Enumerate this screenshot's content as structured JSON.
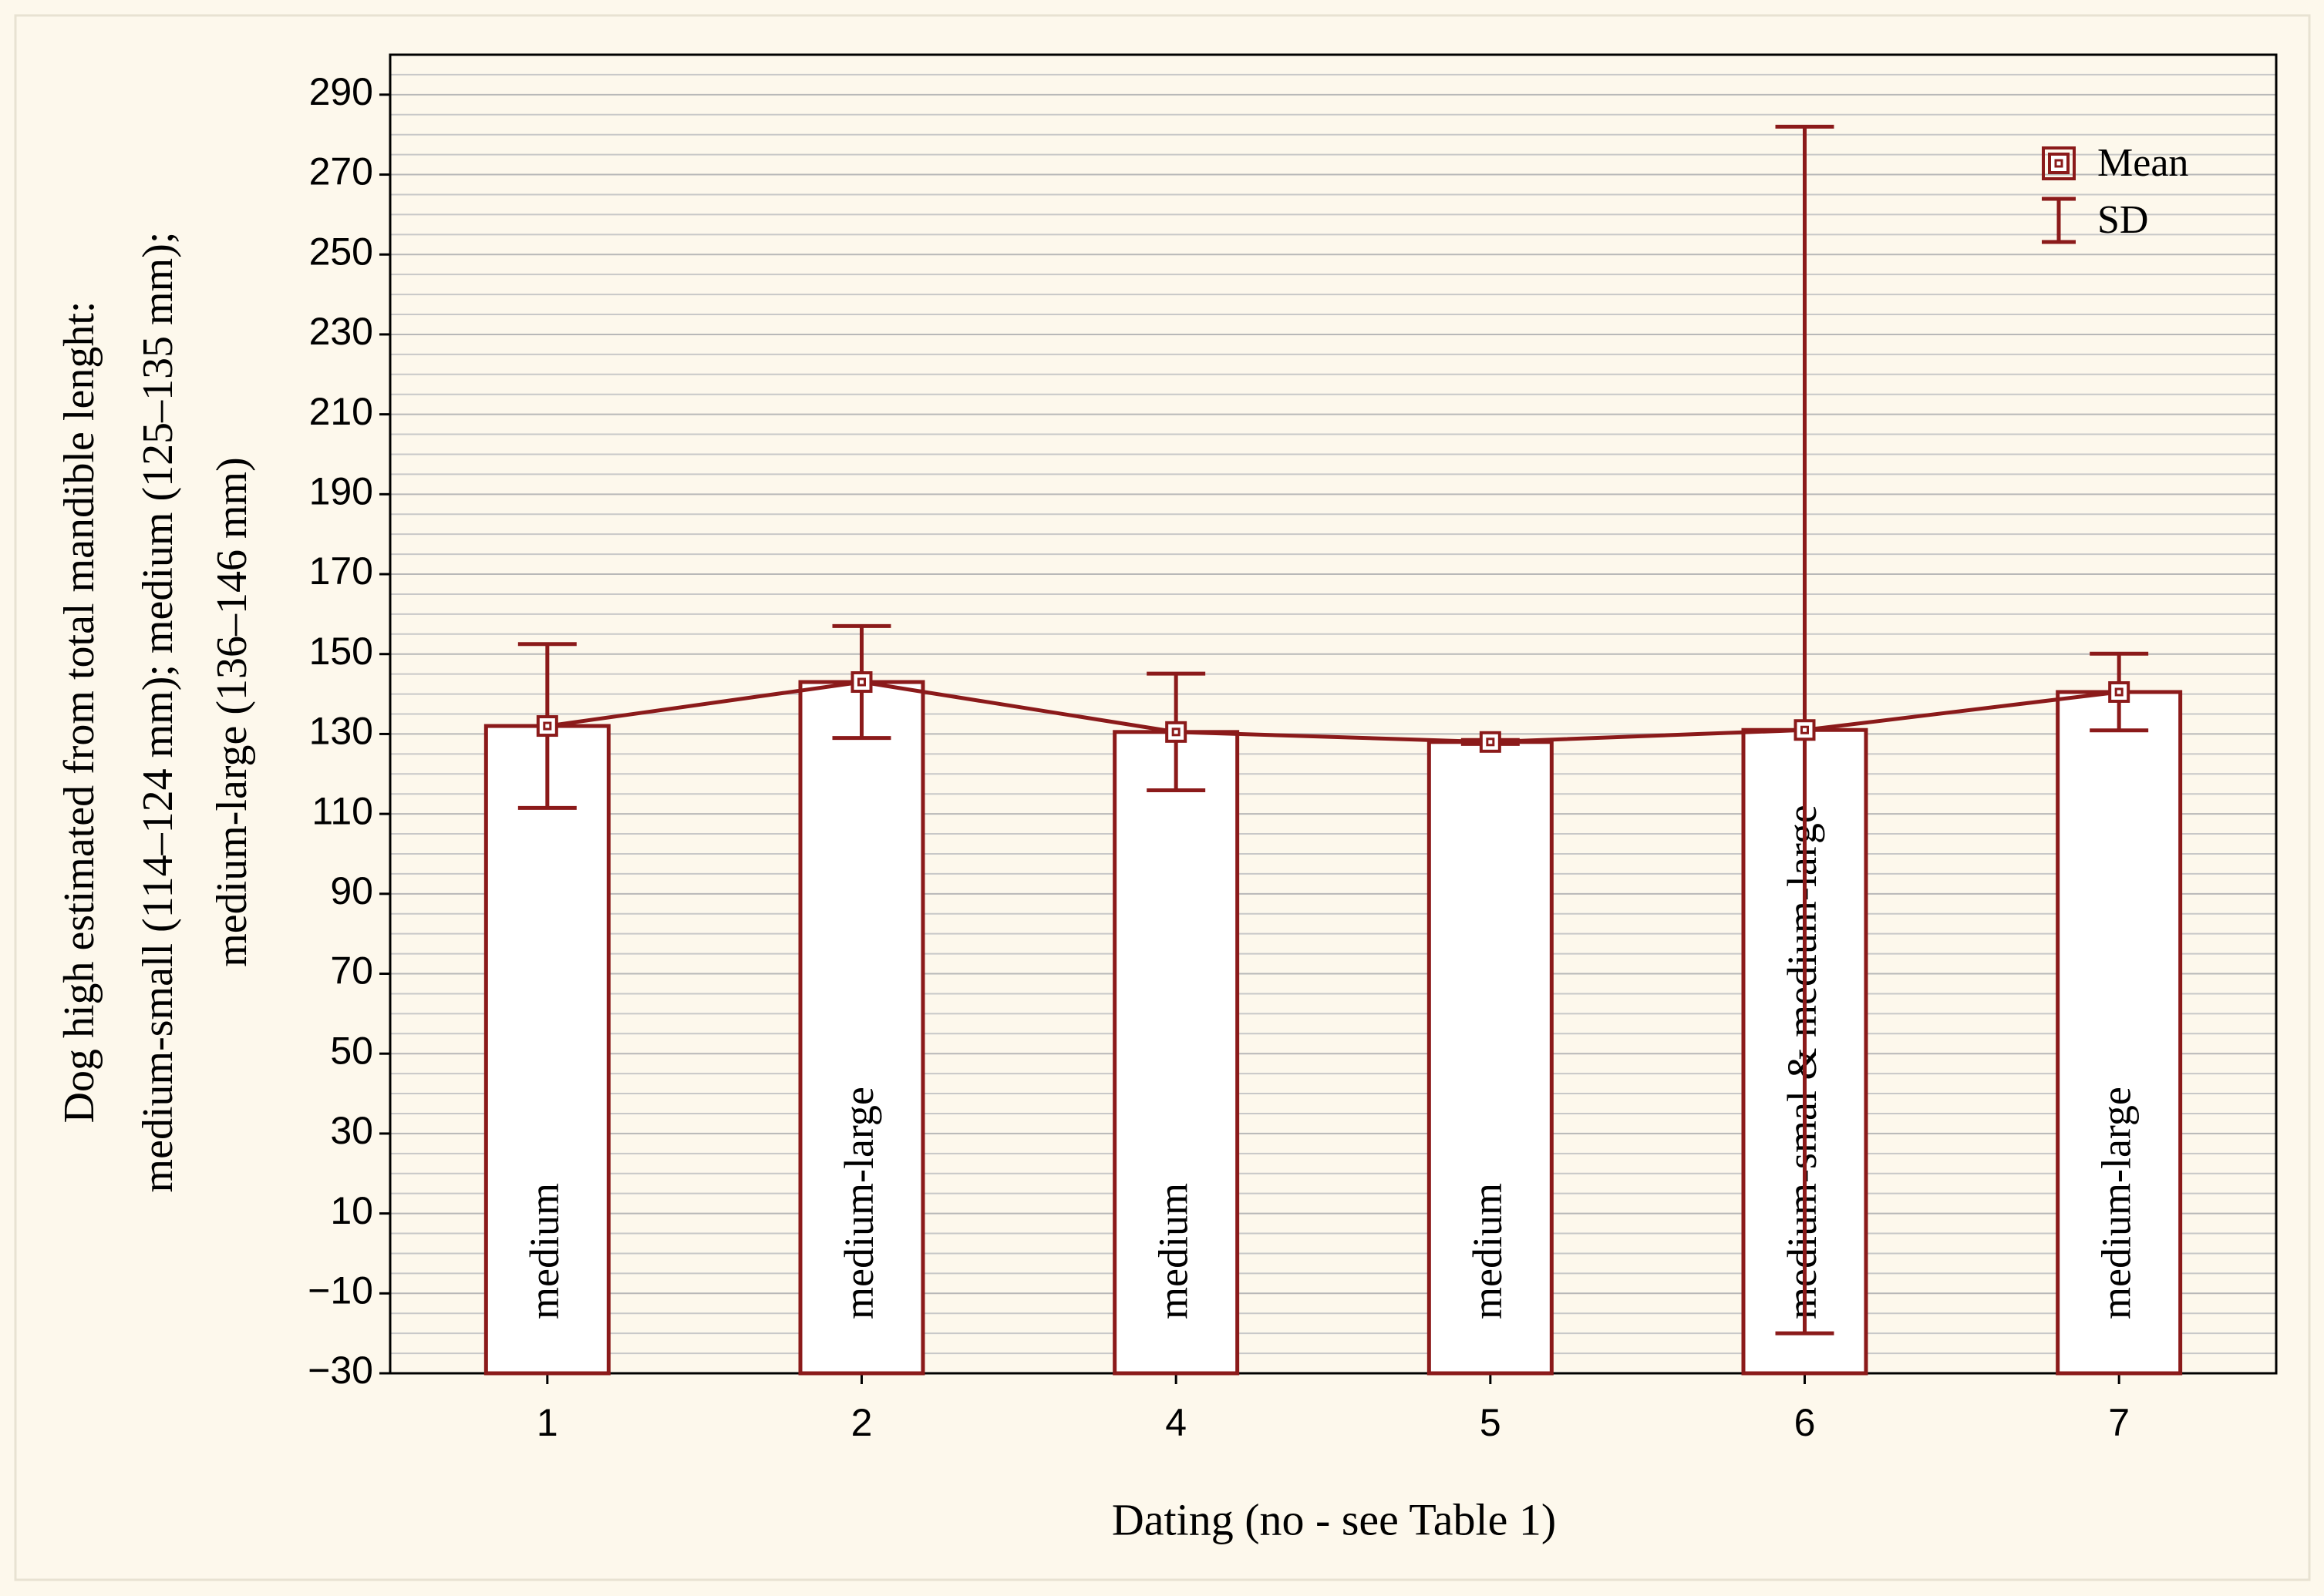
{
  "chart_data": {
    "type": "bar",
    "xlabel": "Dating (no - see Table 1)",
    "ylabel": [
      "Dog high estimated from total mandible lenght:",
      "medium-small (114–124 mm); medium (125–135 mm);",
      "medium-large (136–146 mm)"
    ],
    "categories": [
      "1",
      "2",
      "4",
      "5",
      "6",
      "7"
    ],
    "series": [
      {
        "name": "Mean",
        "error_name": "SD",
        "color": "#8b1a1a",
        "values": [
          132,
          143,
          130.5,
          128,
          131,
          140.5
        ],
        "errors": [
          20.5,
          14,
          14.6,
          0.5,
          151,
          9.6
        ]
      }
    ],
    "bar_labels": [
      "medium",
      "medium-large",
      "medium",
      "medium",
      "medium-smal & medium-large",
      "medium-large"
    ],
    "ylim": [
      -30,
      300
    ],
    "yticks": [
      {
        "value": -30,
        "label": "−30"
      },
      {
        "value": -10,
        "label": "−10"
      },
      10,
      30,
      50,
      70,
      90,
      110,
      130,
      150,
      170,
      190,
      210,
      230,
      250,
      270,
      290
    ],
    "grid": true,
    "legend": "top-right"
  }
}
